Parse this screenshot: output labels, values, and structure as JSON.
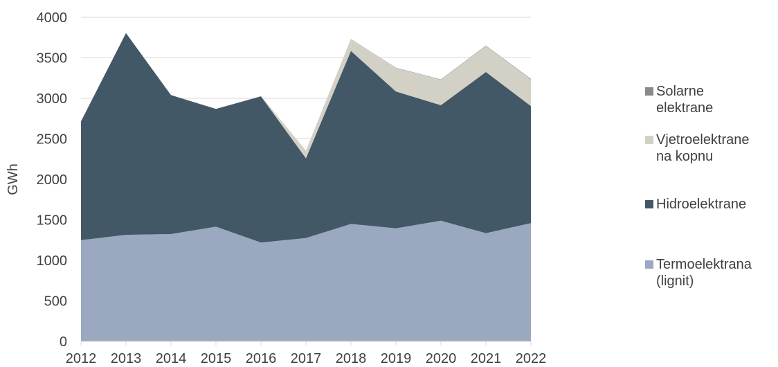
{
  "chart_data": {
    "type": "area",
    "stacked": true,
    "x": [
      "2012",
      "2013",
      "2014",
      "2015",
      "2016",
      "2017",
      "2018",
      "2019",
      "2020",
      "2021",
      "2022"
    ],
    "ylabel": "GWh",
    "ylim": [
      0,
      4000
    ],
    "yticks": [
      "0",
      "500",
      "1000",
      "1500",
      "2000",
      "2500",
      "3000",
      "3500",
      "4000"
    ],
    "grid": true,
    "legend_position": "right",
    "series": [
      {
        "name": "Termoelektrana\n(lignit)",
        "color": "#9aa9bf",
        "values": [
          1250,
          1315,
          1325,
          1415,
          1220,
          1275,
          1450,
          1395,
          1490,
          1335,
          1460
        ]
      },
      {
        "name": "Hidroelektrane",
        "color": "#435866",
        "values": [
          1465,
          2490,
          1715,
          1455,
          1805,
          985,
          2135,
          1690,
          1425,
          1990,
          1445
        ]
      },
      {
        "name": "Vjetroelektrane\nna kopnu",
        "color": "#d3d0c5",
        "values": [
          0,
          0,
          0,
          0,
          5,
          95,
          150,
          290,
          315,
          320,
          330
        ]
      },
      {
        "name": "Solarne\nelektrane",
        "color": "#8a8a8a",
        "values": [
          0,
          0,
          0,
          0,
          0,
          0,
          0,
          3,
          4,
          5,
          6
        ]
      }
    ]
  }
}
